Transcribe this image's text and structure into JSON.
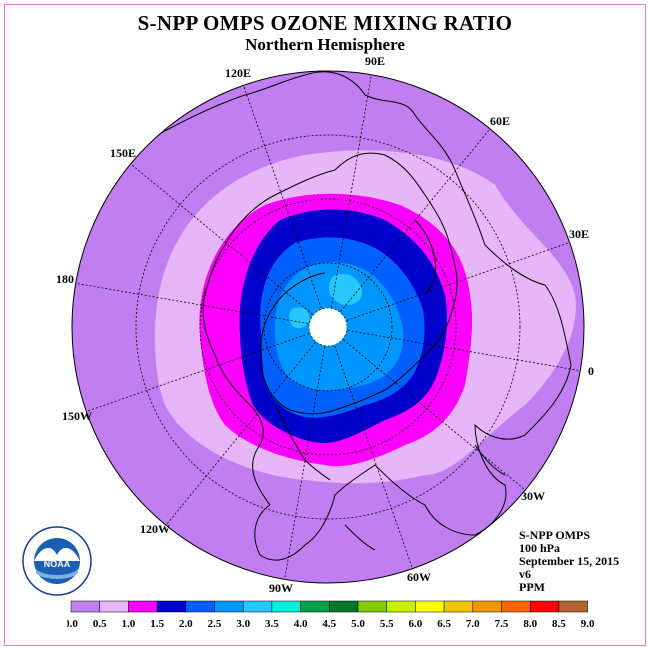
{
  "title": "S-NPP OMPS OZONE MIXING RATIO",
  "subtitle": "Northern Hemisphere",
  "longitude_labels": [
    "90E",
    "60E",
    "30E",
    "0",
    "30W",
    "60W",
    "90W",
    "120W",
    "150W",
    "180",
    "150E",
    "120E"
  ],
  "info": {
    "instrument": "S-NPP OMPS",
    "level": "100 hPa",
    "date": "September 15, 2015",
    "version": "v6",
    "units": "PPM"
  },
  "logo": {
    "text": "NOAA",
    "ring_text": "NATIONAL OCEANIC AND ATMOSPHERIC ADMINISTRATION · U.S. DEPARTMENT OF COMMERCE"
  },
  "colorbar": {
    "labels": [
      "0.0",
      "0.5",
      "1.0",
      "1.5",
      "2.0",
      "2.5",
      "3.0",
      "3.5",
      "4.0",
      "4.5",
      "5.0",
      "5.5",
      "6.0",
      "6.5",
      "7.0",
      "7.5",
      "8.0",
      "8.5",
      "9.0"
    ],
    "colors": [
      "#c07ef0",
      "#e6b6f8",
      "#ff00ff",
      "#0000cc",
      "#0060ff",
      "#0096ff",
      "#28c8ff",
      "#00f0dc",
      "#00a050",
      "#007828",
      "#80cc00",
      "#c8f000",
      "#ffff00",
      "#f0c800",
      "#f09600",
      "#ff6400",
      "#ff0000",
      "#b4642d"
    ]
  },
  "chart_data": {
    "type": "heatmap",
    "title": "S-NPP OMPS OZONE MIXING RATIO",
    "subtitle": "Northern Hemisphere",
    "level": "100 hPa",
    "units": "PPM",
    "range": [
      0.0,
      9.0
    ],
    "zones": [
      {
        "range": "0.0-0.5",
        "color": "#c07ef0",
        "region": "outer ring (low latitudes)"
      },
      {
        "range": "0.5-1.0",
        "color": "#e6b6f8",
        "region": "mid latitudes"
      },
      {
        "range": "1.0-1.5",
        "color": "#ff00ff",
        "region": "high-latitude band"
      },
      {
        "range": "1.5-2.0",
        "color": "#0000cc",
        "region": "polar vortex edge"
      },
      {
        "range": "2.0-2.5",
        "color": "#0060ff",
        "region": "polar cap"
      },
      {
        "range": "2.5-3.0",
        "color": "#0096ff",
        "region": "polar core"
      },
      {
        "range": "3.0-3.5",
        "color": "#28c8ff",
        "region": "isolated peaks"
      }
    ]
  }
}
